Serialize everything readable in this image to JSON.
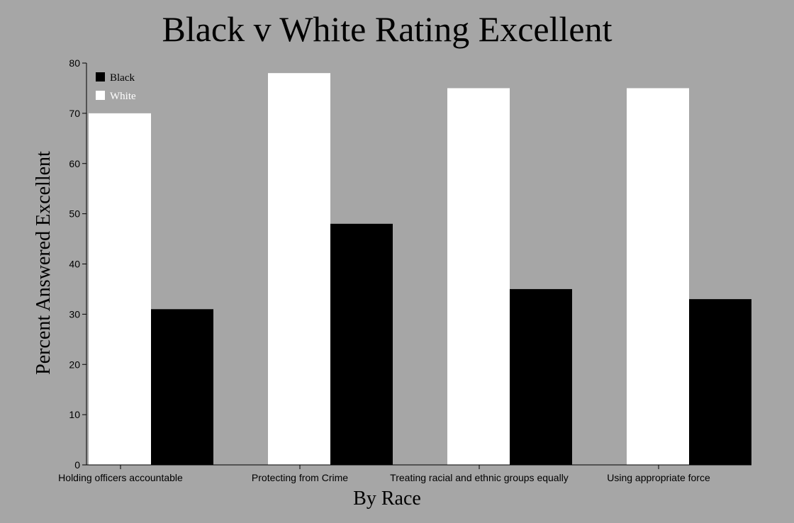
{
  "chart_data": {
    "type": "bar",
    "title": "Black v White Rating Excellent",
    "xlabel": "By Race",
    "ylabel": "Percent Answered Excellent",
    "categories": [
      "Holding officers accountable",
      "Protecting from Crime",
      "Treating racial and ethnic groups equally",
      "Using appropriate force"
    ],
    "series": [
      {
        "name": "White",
        "color": "#ffffff",
        "values": [
          70,
          78,
          75,
          75
        ]
      },
      {
        "name": "Black",
        "color": "#000000",
        "values": [
          31,
          48,
          35,
          33
        ]
      }
    ],
    "legend": {
      "placement": "top-left",
      "entries": [
        {
          "name": "Black",
          "color": "#000000"
        },
        {
          "name": "White",
          "color": "#ffffff"
        }
      ]
    },
    "ylim": [
      0,
      80
    ],
    "yticks": [
      0,
      10,
      20,
      30,
      40,
      50,
      60,
      70,
      80
    ],
    "grid": false,
    "background": "#a6a6a6"
  }
}
